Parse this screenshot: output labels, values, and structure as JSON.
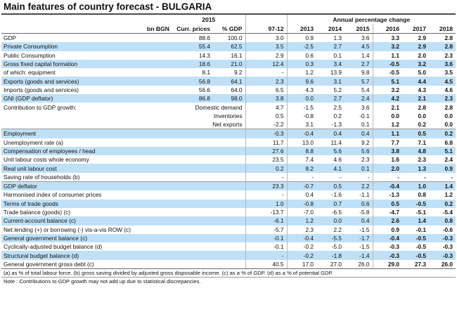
{
  "title": "Main features of country forecast - BULGARIA",
  "header": {
    "year_2015": "2015",
    "annual_change": "Annual percentage change",
    "unit": "bn BGN",
    "curr_prices": "Curr. prices",
    "pct_gdp": "% GDP",
    "period": "97-12",
    "years": [
      "2013",
      "2014",
      "2015",
      "2016",
      "2017",
      "2018"
    ]
  },
  "rows": [
    {
      "label": "GDP",
      "bn": "88.6",
      "gdp": "100.0",
      "avg": "3.0",
      "v": [
        "0.9",
        "1.3",
        "3.6",
        "3.3",
        "2.9",
        "2.8"
      ]
    },
    {
      "label": "Private Consumption",
      "bn": "55.4",
      "gdp": "62.5",
      "avg": "3.5",
      "v": [
        "-2.5",
        "2.7",
        "4.5",
        "3.2",
        "2.9",
        "2.8"
      ]
    },
    {
      "label": "Public Consumption",
      "bn": "14.3",
      "gdp": "16.1",
      "avg": "2.9",
      "v": [
        "0.6",
        "0.1",
        "1.4",
        "1.1",
        "2.0",
        "2.3"
      ]
    },
    {
      "label": "Gross fixed capital formation",
      "bn": "18.6",
      "gdp": "21.0",
      "avg": "12.4",
      "v": [
        "0.3",
        "3.4",
        "2.7",
        "-0.5",
        "3.2",
        "3.6"
      ]
    },
    {
      "label": "of which: equipment",
      "bn": "8.1",
      "gdp": "9.2",
      "avg": "-",
      "v": [
        "1.2",
        "13.9",
        "9.8",
        "-0.5",
        "5.0",
        "3.5"
      ]
    },
    {
      "label": "Exports (goods and services)",
      "bn": "56.8",
      "gdp": "64.1",
      "avg": "2.3",
      "v": [
        "9.6",
        "3.1",
        "5.7",
        "5.1",
        "4.4",
        "4.5"
      ]
    },
    {
      "label": "Imports (goods and services)",
      "bn": "56.6",
      "gdp": "64.0",
      "avg": "6.5",
      "v": [
        "4.3",
        "5.2",
        "5.4",
        "3.2",
        "4.3",
        "4.6"
      ]
    },
    {
      "label": "GNI (GDP deflator)",
      "bn": "86.8",
      "gdp": "98.0",
      "avg": "3.8",
      "v": [
        "0.0",
        "2.7",
        "2.4",
        "4.2",
        "2.1",
        "2.3"
      ]
    },
    {
      "label": "Contribution to GDP growth:",
      "sub": "Domestic demand",
      "bn": "",
      "gdp": "",
      "avg": "4.7",
      "v": [
        "-1.5",
        "2.5",
        "3.6",
        "2.1",
        "2.8",
        "2.8"
      ]
    },
    {
      "label": "",
      "sub": "Inventories",
      "bn": "",
      "gdp": "",
      "avg": "0.5",
      "v": [
        "-0.8",
        "0.2",
        "-0.1",
        "0.0",
        "0.0",
        "0.0"
      ]
    },
    {
      "label": "",
      "sub": "Net exports",
      "bn": "",
      "gdp": "",
      "avg": "-2.2",
      "v": [
        "3.1",
        "-1.3",
        "0.1",
        "1.2",
        "0.2",
        "0.0"
      ]
    },
    {
      "label": "Employment",
      "bn": "",
      "gdp": "",
      "avg": "-0.3",
      "v": [
        "-0.4",
        "0.4",
        "0.4",
        "1.1",
        "0.5",
        "0.2"
      ]
    },
    {
      "label": "Unemployment rate (a)",
      "bn": "",
      "gdp": "",
      "avg": "11.7",
      "v": [
        "13.0",
        "11.4",
        "9.2",
        "7.7",
        "7.1",
        "6.8"
      ]
    },
    {
      "label": "Compensation of employees / head",
      "bn": "",
      "gdp": "",
      "avg": "27.6",
      "v": [
        "8.8",
        "5.6",
        "5.6",
        "3.8",
        "4.8",
        "5.1"
      ]
    },
    {
      "label": "Unit labour costs whole economy",
      "bn": "",
      "gdp": "",
      "avg": "23.5",
      "v": [
        "7.4",
        "4.6",
        "2.3",
        "1.6",
        "2.3",
        "2.4"
      ]
    },
    {
      "label": "Real unit labour cost",
      "bn": "",
      "gdp": "",
      "avg": "0.2",
      "v": [
        "8.2",
        "4.1",
        "0.1",
        "2.0",
        "1.3",
        "0.9"
      ]
    },
    {
      "label": "Saving rate of households (b)",
      "bn": "",
      "gdp": "",
      "avg": "-",
      "v": [
        "-",
        "-",
        "-",
        "-",
        "-",
        "-"
      ]
    },
    {
      "label": "GDP deflator",
      "bn": "",
      "gdp": "",
      "avg": "23.3",
      "v": [
        "-0.7",
        "0.5",
        "2.2",
        "-0.4",
        "1.0",
        "1.4"
      ]
    },
    {
      "label": "Harmonised index of consumer prices",
      "bn": "",
      "gdp": "",
      "avg": "-",
      "v": [
        "0.4",
        "-1.6",
        "-1.1",
        "-1.3",
        "0.8",
        "1.2"
      ]
    },
    {
      "label": "Terms of trade goods",
      "bn": "",
      "gdp": "",
      "avg": "1.0",
      "v": [
        "-0.8",
        "0.7",
        "0.6",
        "0.5",
        "-0.5",
        "0.2"
      ]
    },
    {
      "label": "Trade balance (goods) (c)",
      "bn": "",
      "gdp": "",
      "avg": "-13.7",
      "v": [
        "-7.0",
        "-6.5",
        "-5.8",
        "-4.7",
        "-5.1",
        "-5.4"
      ]
    },
    {
      "label": "Current-account balance (c)",
      "bn": "",
      "gdp": "",
      "avg": "-6.1",
      "v": [
        "1.2",
        "0.0",
        "0.4",
        "2.6",
        "1.4",
        "0.8"
      ]
    },
    {
      "label": "Net lending (+) or borrowing (-) vis-a-vis ROW (c)",
      "bn": "",
      "gdp": "",
      "avg": "-5.7",
      "v": [
        "2.3",
        "2.2",
        "-1.5",
        "0.9",
        "-0.1",
        "-0.6"
      ]
    },
    {
      "label": "General government balance (c)",
      "bn": "",
      "gdp": "",
      "avg": "-0.1",
      "v": [
        "-0.4",
        "-5.5",
        "-1.7",
        "-0.4",
        "-0.5",
        "-0.3"
      ]
    },
    {
      "label": "Cyclically-adjusted budget balance (d)",
      "bn": "",
      "gdp": "",
      "avg": "-0.1",
      "v": [
        "-0.2",
        "-5.0",
        "-1.5",
        "-0.3",
        "-0.5",
        "-0.3"
      ]
    },
    {
      "label": "Structural budget balance (d)",
      "bn": "",
      "gdp": "",
      "avg": "-",
      "v": [
        "-0.2",
        "-1.8",
        "-1.4",
        "-0.3",
        "-0.5",
        "-0.3"
      ]
    },
    {
      "label": "General government gross debt (c)",
      "bn": "",
      "gdp": "",
      "avg": "40.5",
      "v": [
        "17.0",
        "27.0",
        "26.0",
        "29.0",
        "27.3",
        "26.0"
      ]
    }
  ],
  "footnote_1": "(a) as % of total labour force. (b) gross saving divided by adjusted gross disposable income. (c) as a % of GDP. (d) as a % of potential GDP.",
  "footnote_2": "Note : Contributions to GDP growth may not add up due to statistical discrepancies."
}
